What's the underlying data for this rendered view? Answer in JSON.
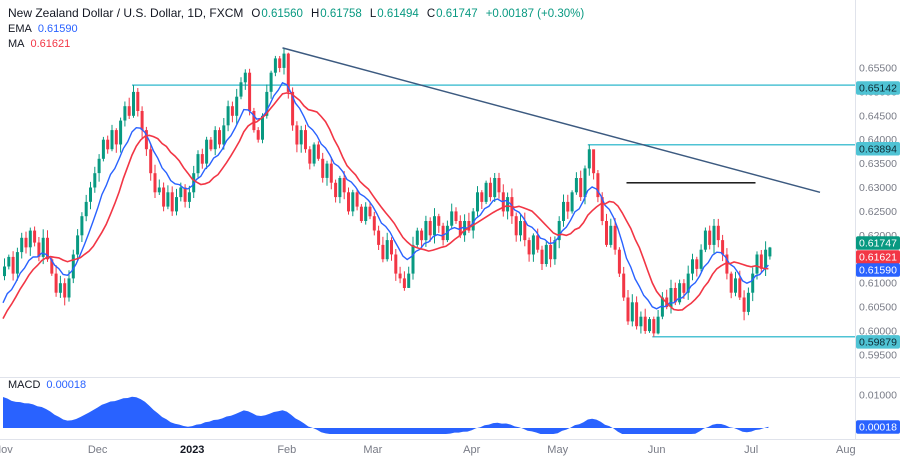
{
  "colors": {
    "up": "#089981",
    "down": "#f23645",
    "ema_line": "#2962ff",
    "ma_line": "#f23645",
    "level_line": "#4fc3d4",
    "level_badge": "#4fc3d4",
    "trendline": "#3c5a80",
    "black_line": "#000000",
    "macd_fill": "#2962ff",
    "axis_text": "#787b86",
    "text_dark": "#131722",
    "border": "#e0e3eb"
  },
  "legend": {
    "symbol": "New Zealand Dollar / U.S. Dollar, 1D, FXCM",
    "o_label": "O",
    "o": "0.61560",
    "h_label": "H",
    "h": "0.61758",
    "l_label": "L",
    "l": "0.61494",
    "c_label": "C",
    "c": "0.61747",
    "change": "+0.00187 (+0.30%)",
    "ema_label": "EMA",
    "ema_value": "0.61590",
    "ma_label": "MA",
    "ma_value": "0.61621",
    "macd_label": "MACD",
    "macd_value": "0.00018"
  },
  "badges": {
    "last_price": "0.61747",
    "ma_value": "0.61621",
    "ema_value": "0.61590",
    "macd_value": "0.00018"
  },
  "chart_data": {
    "type": "candlestick",
    "title": "New Zealand Dollar / U.S. Dollar, 1D, FXCM",
    "ohlc": {
      "open": 0.6156,
      "high": 0.61758,
      "low": 0.61494,
      "close": 0.61747,
      "change": "+0.00187 (+0.30%)"
    },
    "ylim": [
      0.5915,
      0.6598
    ],
    "price_axis": [
      "0.65500",
      "0.65000",
      "0.64500",
      "0.64000",
      "0.63500",
      "0.63000",
      "0.62500",
      "0.62000",
      "0.61000",
      "0.60500",
      "0.60000",
      "0.59500"
    ],
    "macd_axis_label": "0.01000",
    "months": [
      {
        "label": "Nov",
        "index": 0
      },
      {
        "label": "Dec",
        "index": 22
      },
      {
        "label": "2023",
        "index": 44,
        "bold": true
      },
      {
        "label": "Feb",
        "index": 66
      },
      {
        "label": "Mar",
        "index": 86
      },
      {
        "label": "Apr",
        "index": 109
      },
      {
        "label": "May",
        "index": 129
      },
      {
        "label": "Jun",
        "index": 152
      },
      {
        "label": "Jul",
        "index": 174
      },
      {
        "label": "Aug",
        "index": 196
      }
    ],
    "first_open": 0.6115,
    "closes": [
      0.6135,
      0.6155,
      0.612,
      0.6165,
      0.6195,
      0.6175,
      0.621,
      0.6185,
      0.6155,
      0.6195,
      0.615,
      0.612,
      0.608,
      0.61,
      0.607,
      0.611,
      0.616,
      0.62,
      0.624,
      0.627,
      0.63,
      0.633,
      0.636,
      0.64,
      0.638,
      0.642,
      0.639,
      0.644,
      0.647,
      0.645,
      0.65,
      0.646,
      0.642,
      0.638,
      0.633,
      0.629,
      0.63,
      0.626,
      0.629,
      0.625,
      0.628,
      0.63,
      0.627,
      0.629,
      0.633,
      0.637,
      0.635,
      0.64,
      0.638,
      0.642,
      0.639,
      0.643,
      0.647,
      0.645,
      0.649,
      0.652,
      0.654,
      0.646,
      0.642,
      0.64,
      0.645,
      0.65,
      0.654,
      0.657,
      0.655,
      0.658,
      0.65,
      0.643,
      0.639,
      0.642,
      0.638,
      0.635,
      0.639,
      0.636,
      0.632,
      0.635,
      0.631,
      0.628,
      0.632,
      0.629,
      0.625,
      0.629,
      0.626,
      0.623,
      0.626,
      0.624,
      0.621,
      0.618,
      0.615,
      0.619,
      0.616,
      0.612,
      0.611,
      0.609,
      0.612,
      0.618,
      0.621,
      0.619,
      0.623,
      0.62,
      0.624,
      0.622,
      0.619,
      0.622,
      0.625,
      0.623,
      0.62,
      0.623,
      0.621,
      0.625,
      0.629,
      0.627,
      0.631,
      0.628,
      0.632,
      0.629,
      0.625,
      0.628,
      0.624,
      0.62,
      0.623,
      0.619,
      0.616,
      0.62,
      0.617,
      0.614,
      0.618,
      0.615,
      0.619,
      0.623,
      0.627,
      0.625,
      0.629,
      0.632,
      0.628,
      0.634,
      0.638,
      0.633,
      0.628,
      0.623,
      0.618,
      0.622,
      0.617,
      0.612,
      0.607,
      0.602,
      0.606,
      0.601,
      0.603,
      0.6,
      0.6025,
      0.5995,
      0.603,
      0.607,
      0.605,
      0.609,
      0.606,
      0.61,
      0.608,
      0.612,
      0.615,
      0.613,
      0.617,
      0.621,
      0.618,
      0.622,
      0.619,
      0.616,
      0.612,
      0.608,
      0.611,
      0.607,
      0.604,
      0.608,
      0.612,
      0.616,
      0.613,
      0.617,
      0.61747
    ],
    "key_candles": [
      {
        "index": 30,
        "high": 0.65142
      },
      {
        "index": 65,
        "high": 0.659
      },
      {
        "index": 66,
        "high": 0.6582
      },
      {
        "index": 93,
        "low": 0.6084
      },
      {
        "index": 94,
        "low": 0.609
      },
      {
        "index": 136,
        "high": 0.63894
      },
      {
        "index": 137,
        "high": 0.637
      },
      {
        "index": 149,
        "low": 0.5994
      },
      {
        "index": 150,
        "low": 0.5996
      },
      {
        "index": 151,
        "low": 0.59879
      },
      {
        "index": 152,
        "low": 0.5993
      },
      {
        "index": 178,
        "open": 0.6156,
        "high": 0.61758,
        "low": 0.61494,
        "close": 0.61747
      }
    ],
    "levels": [
      {
        "price": 0.65142,
        "label": "0.65142",
        "start_index": 30,
        "badge_dy": 3
      },
      {
        "price": 0.63894,
        "label": "0.63894",
        "start_index": 136,
        "badge_dy": 4
      },
      {
        "price": 0.59879,
        "label": "0.59879",
        "start_index": 151,
        "badge_dy": 5
      }
    ],
    "trendline": {
      "start_index": 65,
      "start_price": 0.6592,
      "end_index": 190,
      "end_price": 0.629
    },
    "horizontal_segment": {
      "price": 0.631,
      "start_index": 145,
      "end_index": 175
    },
    "indicators": {
      "ema": {
        "label": "EMA",
        "value": 0.6159
      },
      "ma": {
        "label": "MA",
        "value": 0.61621
      },
      "macd": {
        "label": "MACD",
        "value": 0.00018
      }
    }
  }
}
